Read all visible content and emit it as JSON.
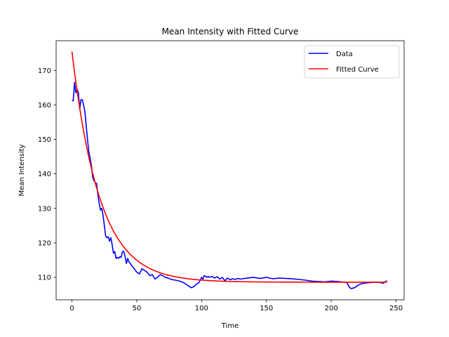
{
  "chart_data": {
    "type": "line",
    "title": "Mean Intensity with Fitted Curve",
    "xlabel": "Time",
    "ylabel": "Mean Intensity",
    "xlim": [
      -12.2,
      256.2
    ],
    "ylim": [
      103.5,
      178.6
    ],
    "xticks": [
      0,
      50,
      100,
      150,
      200,
      250
    ],
    "yticks": [
      110,
      120,
      130,
      140,
      150,
      160,
      170
    ],
    "grid": false,
    "legend": "top-right",
    "series": [
      {
        "name": "Data",
        "color": "#0000ff",
        "x": [
          0,
          1,
          2,
          3,
          4,
          5,
          6,
          7,
          8,
          9,
          10,
          11,
          12,
          13,
          14,
          15,
          16,
          17,
          18,
          19,
          20,
          21,
          22,
          23,
          24,
          25,
          26,
          27,
          28,
          29,
          30,
          31,
          32,
          33,
          34,
          35,
          36,
          37,
          38,
          39,
          40,
          41,
          42,
          43,
          44,
          45,
          46,
          48,
          50,
          52,
          54,
          56,
          58,
          60,
          62,
          64,
          66,
          68,
          70,
          72,
          74,
          76,
          78,
          80,
          82,
          84,
          86,
          88,
          90,
          92,
          94,
          96,
          98,
          100,
          101,
          102,
          103,
          104,
          105,
          106,
          108,
          110,
          112,
          114,
          116,
          118,
          120,
          122,
          124,
          126,
          128,
          130,
          135,
          140,
          145,
          150,
          155,
          160,
          165,
          170,
          175,
          180,
          185,
          190,
          195,
          200,
          205,
          210,
          212,
          214,
          215,
          216,
          218,
          220,
          222,
          225,
          230,
          235,
          238,
          240,
          242,
          243
        ],
        "y": [
          161.3,
          161.2,
          166.5,
          163.5,
          164.5,
          163.5,
          158.8,
          161.5,
          161.5,
          160.0,
          158.0,
          154.0,
          150.0,
          146.5,
          144.5,
          142.5,
          139.0,
          138.0,
          137.5,
          137.2,
          134.0,
          131.5,
          129.5,
          130.0,
          128.0,
          125.0,
          122.0,
          121.5,
          121.8,
          120.5,
          121.5,
          119.5,
          117.0,
          117.5,
          115.5,
          115.8,
          115.5,
          116.0,
          115.8,
          117.5,
          117.5,
          116.0,
          114.0,
          115.5,
          114.5,
          114.0,
          113.5,
          112.5,
          111.5,
          111.0,
          112.5,
          112.0,
          111.5,
          110.5,
          110.8,
          109.5,
          110.0,
          110.8,
          110.5,
          110.0,
          109.8,
          109.5,
          109.3,
          109.2,
          109.0,
          108.8,
          108.5,
          108.0,
          107.5,
          107.0,
          107.3,
          108.0,
          108.5,
          110.0,
          109.5,
          110.5,
          110.3,
          110.0,
          110.3,
          110.0,
          110.3,
          109.8,
          110.2,
          109.5,
          110.0,
          109.0,
          109.8,
          109.3,
          109.6,
          109.4,
          109.7,
          109.5,
          109.8,
          110.0,
          109.7,
          110.0,
          109.6,
          109.8,
          109.7,
          109.6,
          109.4,
          109.2,
          108.9,
          108.8,
          108.7,
          108.9,
          108.8,
          108.6,
          108.5,
          107.2,
          106.8,
          106.8,
          107.0,
          107.5,
          108.0,
          108.3,
          108.5,
          108.6,
          108.5,
          108.3,
          108.8,
          109.0
        ]
      },
      {
        "name": "Fitted Curve",
        "color": "#ff0000",
        "model": "exponential-decay",
        "params": {
          "a": 66.9,
          "k": 0.047,
          "c": 108.6
        },
        "x_range": [
          0,
          243
        ]
      }
    ]
  }
}
